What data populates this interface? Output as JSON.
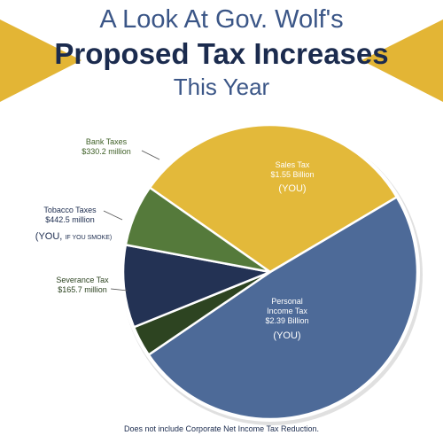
{
  "header": {
    "line1": "A Look At Gov. Wolf's",
    "line2": "Proposed Tax Increases",
    "line3": "This Year"
  },
  "footnote": "Does not include Corporate Net Income Tax Reduction.",
  "colors": {
    "title_light": "#3b5687",
    "title_dark": "#1b2b4e",
    "ribbon_gold": "#e3b535"
  },
  "chart_data": {
    "type": "pie",
    "unit": "million",
    "slices": [
      {
        "name": "Sales Tax",
        "value_label": "$1.55 Billion",
        "note": "(YOU)",
        "value": 1550,
        "color": "#e3b93a"
      },
      {
        "name": "Personal Income Tax",
        "name_lines": [
          "Personal",
          "Income Tax"
        ],
        "value_label": "$2.39 Billion",
        "note": "(YOU)",
        "value": 2390,
        "color": "#4d6a98"
      },
      {
        "name": "Severance Tax",
        "value_label": "$165.7 million",
        "value": 165.7,
        "color": "#2d4421"
      },
      {
        "name": "Tobacco Taxes",
        "value_label": "$442.5 million",
        "note_main": "(YOU,",
        "note_small": "IF YOU SMOKE)",
        "value": 442.5,
        "color": "#233254"
      },
      {
        "name": "Bank Taxes",
        "value_label": "$330.2 million",
        "value": 330.2,
        "color": "#557a3b"
      }
    ]
  }
}
